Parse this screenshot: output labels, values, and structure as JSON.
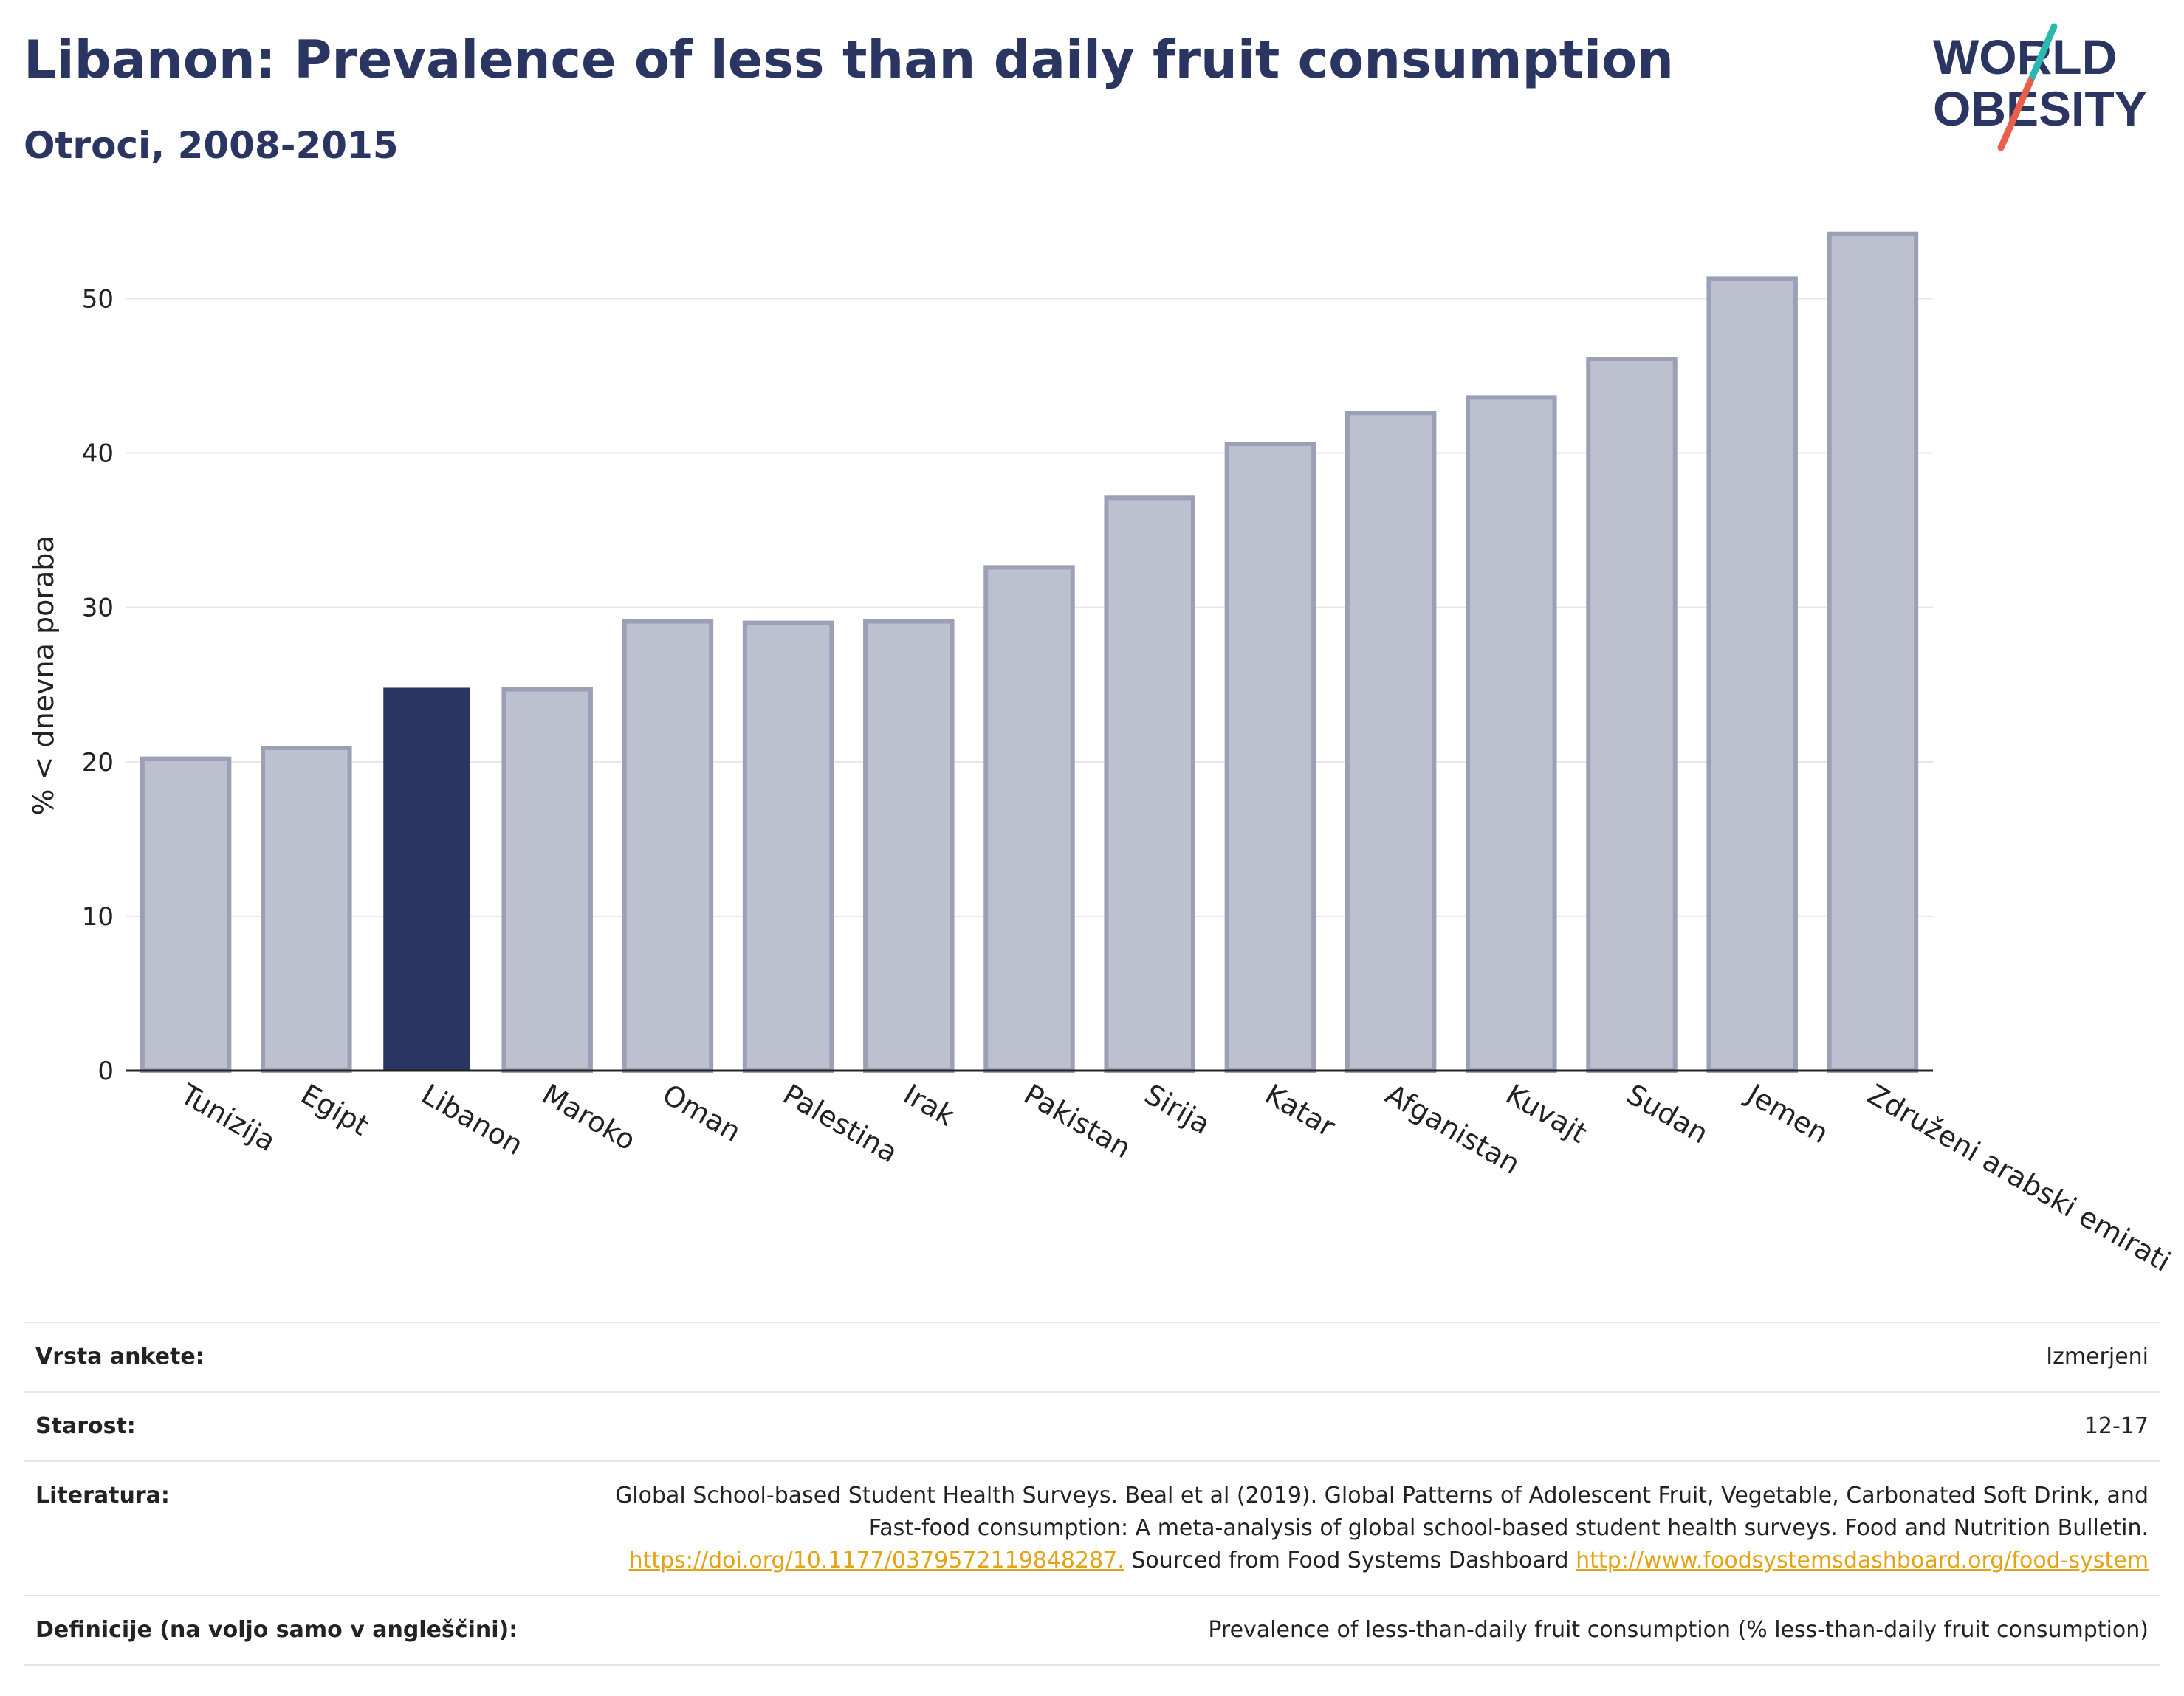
{
  "header": {
    "title": "Libanon: Prevalence of less than daily fruit consumption",
    "subtitle": "Otroci, 2008-2015"
  },
  "logo": {
    "line1": "WORLD",
    "line2": "OBESITY",
    "accent_colors": [
      "#2bb8b0",
      "#e8604c"
    ]
  },
  "colors": {
    "highlight_bar": "#2a3562",
    "other_bar_fill": "#bcc0cf",
    "other_bar_stroke": "#9ca0b6",
    "grid": "#e6e6e6",
    "axis": "#222222",
    "link": "#e2a316"
  },
  "chart_data": {
    "type": "bar",
    "ylabel": "% < dnevna poraba",
    "xlabel": "",
    "ylim": [
      0,
      55
    ],
    "yticks": [
      0,
      10,
      20,
      30,
      40,
      50
    ],
    "grid": true,
    "highlight": "Libanon",
    "categories": [
      "Tunizija",
      "Egipt",
      "Libanon",
      "Maroko",
      "Oman",
      "Palestina",
      "Irak",
      "Pakistan",
      "Sirija",
      "Katar",
      "Afganistan",
      "Kuvajt",
      "Sudan",
      "Jemen",
      "Združeni arabski emirati"
    ],
    "values": [
      20.2,
      20.9,
      24.8,
      24.7,
      29.1,
      29.0,
      29.1,
      32.6,
      37.1,
      40.6,
      42.6,
      43.6,
      46.1,
      51.3,
      54.2
    ]
  },
  "meta": {
    "survey_label": "Vrsta ankete:",
    "survey_value": "Izmerjeni",
    "age_label": "Starost:",
    "age_value": "12-17",
    "ref_label": "Literatura:",
    "ref_text": "Global School-based Student Health Surveys. Beal et al (2019). Global Patterns of Adolescent Fruit, Vegetable, Carbonated Soft Drink, and Fast-food consumption: A meta-analysis of global school-based student health surveys. Food and Nutrition Bulletin.",
    "ref_link1": "https://doi.org/10.1177/0379572119848287.",
    "ref_mid": "Sourced from Food Systems Dashboard",
    "ref_link2": "http://www.foodsystemsdashboard.org/food-system",
    "def_label": "Definicije (na voljo samo v angleščini):",
    "def_value": "Prevalence of less-than-daily fruit consumption (% less-than-daily fruit consumption)"
  }
}
